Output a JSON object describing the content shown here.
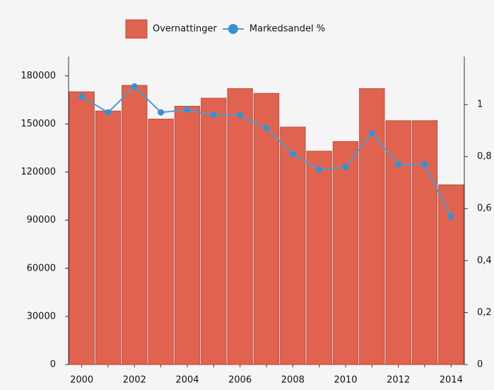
{
  "chart_data": {
    "type": "bar-line",
    "categories": [
      "2000",
      null,
      "2002",
      null,
      "2004",
      null,
      "2006",
      null,
      "2008",
      null,
      "2010",
      null,
      "2012",
      null,
      "2014"
    ],
    "series": [
      {
        "name": "Overnattinger",
        "type": "bar",
        "color": "#e0634f",
        "values": [
          170000,
          158000,
          174000,
          153000,
          161000,
          166000,
          172000,
          169000,
          148000,
          133000,
          139000,
          172000,
          152000,
          152000,
          112000
        ]
      },
      {
        "name": "Markedsandel %",
        "type": "line",
        "axis": "y2",
        "color": "#3a8fd0",
        "values": [
          1.03,
          0.97,
          1.07,
          0.97,
          0.98,
          0.96,
          0.96,
          0.91,
          0.81,
          0.75,
          0.76,
          0.89,
          0.77,
          0.77,
          0.57
        ]
      }
    ],
    "ylim": [
      0,
      192000
    ],
    "yticks": [
      0,
      30000,
      60000,
      90000,
      120000,
      150000,
      180000
    ],
    "y2lim": [
      0,
      1.185
    ],
    "y2ticks": [
      0,
      {
        "value": 0.2,
        "label": "0,2"
      },
      {
        "value": 0.4,
        "label": "0,4"
      },
      {
        "value": 0.6,
        "label": "0,6"
      },
      {
        "value": 0.8,
        "label": "0,8"
      },
      1
    ],
    "legend": "top"
  }
}
